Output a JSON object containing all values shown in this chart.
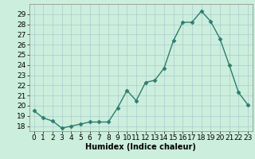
{
  "x": [
    0,
    1,
    2,
    3,
    4,
    5,
    6,
    7,
    8,
    9,
    10,
    11,
    12,
    13,
    14,
    15,
    16,
    17,
    18,
    19,
    20,
    21,
    22,
    23
  ],
  "y": [
    19.5,
    18.8,
    18.5,
    17.8,
    18.0,
    18.2,
    18.4,
    18.4,
    18.4,
    19.8,
    21.5,
    20.5,
    22.3,
    22.5,
    23.7,
    26.4,
    28.2,
    28.2,
    29.3,
    28.3,
    26.6,
    24.0,
    21.3,
    20.1
  ],
  "line_color": "#2e7d6e",
  "marker": "D",
  "marker_size": 2.5,
  "line_width": 1.0,
  "background_color": "#cceedd",
  "grid_color": "#aacccc",
  "xlabel": "Humidex (Indice chaleur)",
  "xlabel_fontsize": 7,
  "tick_fontsize": 6.5,
  "ylim": [
    17.5,
    30.0
  ],
  "xlim": [
    -0.5,
    23.5
  ],
  "yticks": [
    18,
    19,
    20,
    21,
    22,
    23,
    24,
    25,
    26,
    27,
    28,
    29
  ],
  "xticks": [
    0,
    1,
    2,
    3,
    4,
    5,
    6,
    7,
    8,
    9,
    10,
    11,
    12,
    13,
    14,
    15,
    16,
    17,
    18,
    19,
    20,
    21,
    22,
    23
  ]
}
